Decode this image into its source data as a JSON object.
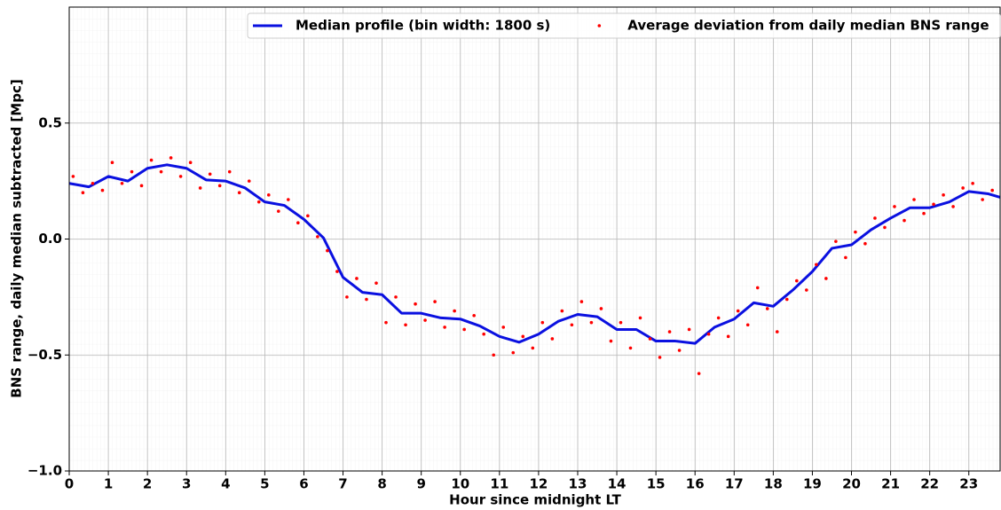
{
  "chart_data": {
    "type": "line",
    "x_label": "Hour since midnight LT",
    "y_label": "BNS range, daily median subtracted [Mpc]",
    "xlim": [
      0,
      23.8
    ],
    "ylim": [
      -1.0,
      1.0
    ],
    "xticks": [
      0,
      1,
      2,
      3,
      4,
      5,
      6,
      7,
      8,
      9,
      10,
      11,
      12,
      13,
      14,
      15,
      16,
      17,
      18,
      19,
      20,
      21,
      22,
      23
    ],
    "yticks": [
      {
        "value": -1.0,
        "label": "−1.0"
      },
      {
        "value": -0.5,
        "label": "−0.5"
      },
      {
        "value": 0.0,
        "label": "0.0"
      },
      0.5
    ],
    "grid": true,
    "legend": "upper right",
    "series": [
      {
        "name": "Median profile (bin width: 1800 s)",
        "type": "line",
        "color": "#0a10e0",
        "x": [
          0,
          0.5,
          1,
          1.5,
          2,
          2.5,
          3,
          3.5,
          4,
          4.5,
          5,
          5.5,
          6,
          6.5,
          7,
          7.5,
          8,
          8.5,
          9,
          9.5,
          10,
          10.5,
          11,
          11.5,
          12,
          12.5,
          13,
          13.5,
          14,
          14.5,
          15,
          15.5,
          16,
          16.5,
          17,
          17.5,
          18,
          18.5,
          19,
          19.5,
          20,
          20.5,
          21,
          21.5,
          22,
          22.5,
          23,
          23.5,
          23.8
        ],
        "values": [
          0.24,
          0.225,
          0.27,
          0.25,
          0.305,
          0.32,
          0.305,
          0.255,
          0.25,
          0.22,
          0.16,
          0.145,
          0.085,
          0.005,
          -0.165,
          -0.23,
          -0.24,
          -0.32,
          -0.32,
          -0.34,
          -0.345,
          -0.375,
          -0.42,
          -0.445,
          -0.41,
          -0.355,
          -0.325,
          -0.335,
          -0.39,
          -0.39,
          -0.44,
          -0.44,
          -0.45,
          -0.38,
          -0.345,
          -0.275,
          -0.29,
          -0.22,
          -0.14,
          -0.04,
          -0.025,
          0.04,
          0.09,
          0.135,
          0.135,
          0.16,
          0.205,
          0.195,
          0.18
        ]
      },
      {
        "name": "Average deviation from daily median BNS range",
        "type": "scatter",
        "color": "#ff0000",
        "x": [
          0.1,
          0.35,
          0.6,
          0.85,
          1.1,
          1.35,
          1.6,
          1.85,
          2.1,
          2.35,
          2.6,
          2.85,
          3.1,
          3.35,
          3.6,
          3.85,
          4.1,
          4.35,
          4.6,
          4.85,
          5.1,
          5.35,
          5.6,
          5.85,
          6.1,
          6.35,
          6.6,
          6.85,
          7.1,
          7.35,
          7.6,
          7.85,
          8.1,
          8.35,
          8.6,
          8.85,
          9.1,
          9.35,
          9.6,
          9.85,
          10.1,
          10.35,
          10.6,
          10.85,
          11.1,
          11.35,
          11.6,
          11.85,
          12.1,
          12.35,
          12.6,
          12.85,
          13.1,
          13.35,
          13.6,
          13.85,
          14.1,
          14.35,
          14.6,
          14.85,
          15.1,
          15.35,
          15.6,
          15.85,
          16.1,
          16.35,
          16.6,
          16.85,
          17.1,
          17.35,
          17.6,
          17.85,
          18.1,
          18.35,
          18.6,
          18.85,
          19.1,
          19.35,
          19.6,
          19.85,
          20.1,
          20.35,
          20.6,
          20.85,
          21.1,
          21.35,
          21.6,
          21.85,
          22.1,
          22.35,
          22.6,
          22.85,
          23.1,
          23.35,
          23.6
        ],
        "values": [
          0.27,
          0.2,
          0.24,
          0.21,
          0.33,
          0.24,
          0.29,
          0.23,
          0.34,
          0.29,
          0.35,
          0.27,
          0.33,
          0.22,
          0.28,
          0.23,
          0.29,
          0.2,
          0.25,
          0.16,
          0.19,
          0.12,
          0.17,
          0.07,
          0.1,
          0.01,
          -0.05,
          -0.14,
          -0.25,
          -0.17,
          -0.26,
          -0.19,
          -0.36,
          -0.25,
          -0.37,
          -0.28,
          -0.35,
          -0.27,
          -0.38,
          -0.31,
          -0.39,
          -0.33,
          -0.41,
          -0.5,
          -0.38,
          -0.49,
          -0.42,
          -0.47,
          -0.36,
          -0.43,
          -0.31,
          -0.37,
          -0.27,
          -0.36,
          -0.3,
          -0.44,
          -0.36,
          -0.47,
          -0.34,
          -0.43,
          -0.51,
          -0.4,
          -0.48,
          -0.39,
          -0.58,
          -0.41,
          -0.34,
          -0.42,
          -0.31,
          -0.37,
          -0.21,
          -0.3,
          -0.4,
          -0.26,
          -0.18,
          -0.22,
          -0.11,
          -0.17,
          -0.01,
          -0.08,
          0.03,
          -0.02,
          0.09,
          0.05,
          0.14,
          0.08,
          0.17,
          0.11,
          0.15,
          0.19,
          0.14,
          0.22,
          0.24,
          0.17,
          0.21
        ]
      }
    ]
  }
}
